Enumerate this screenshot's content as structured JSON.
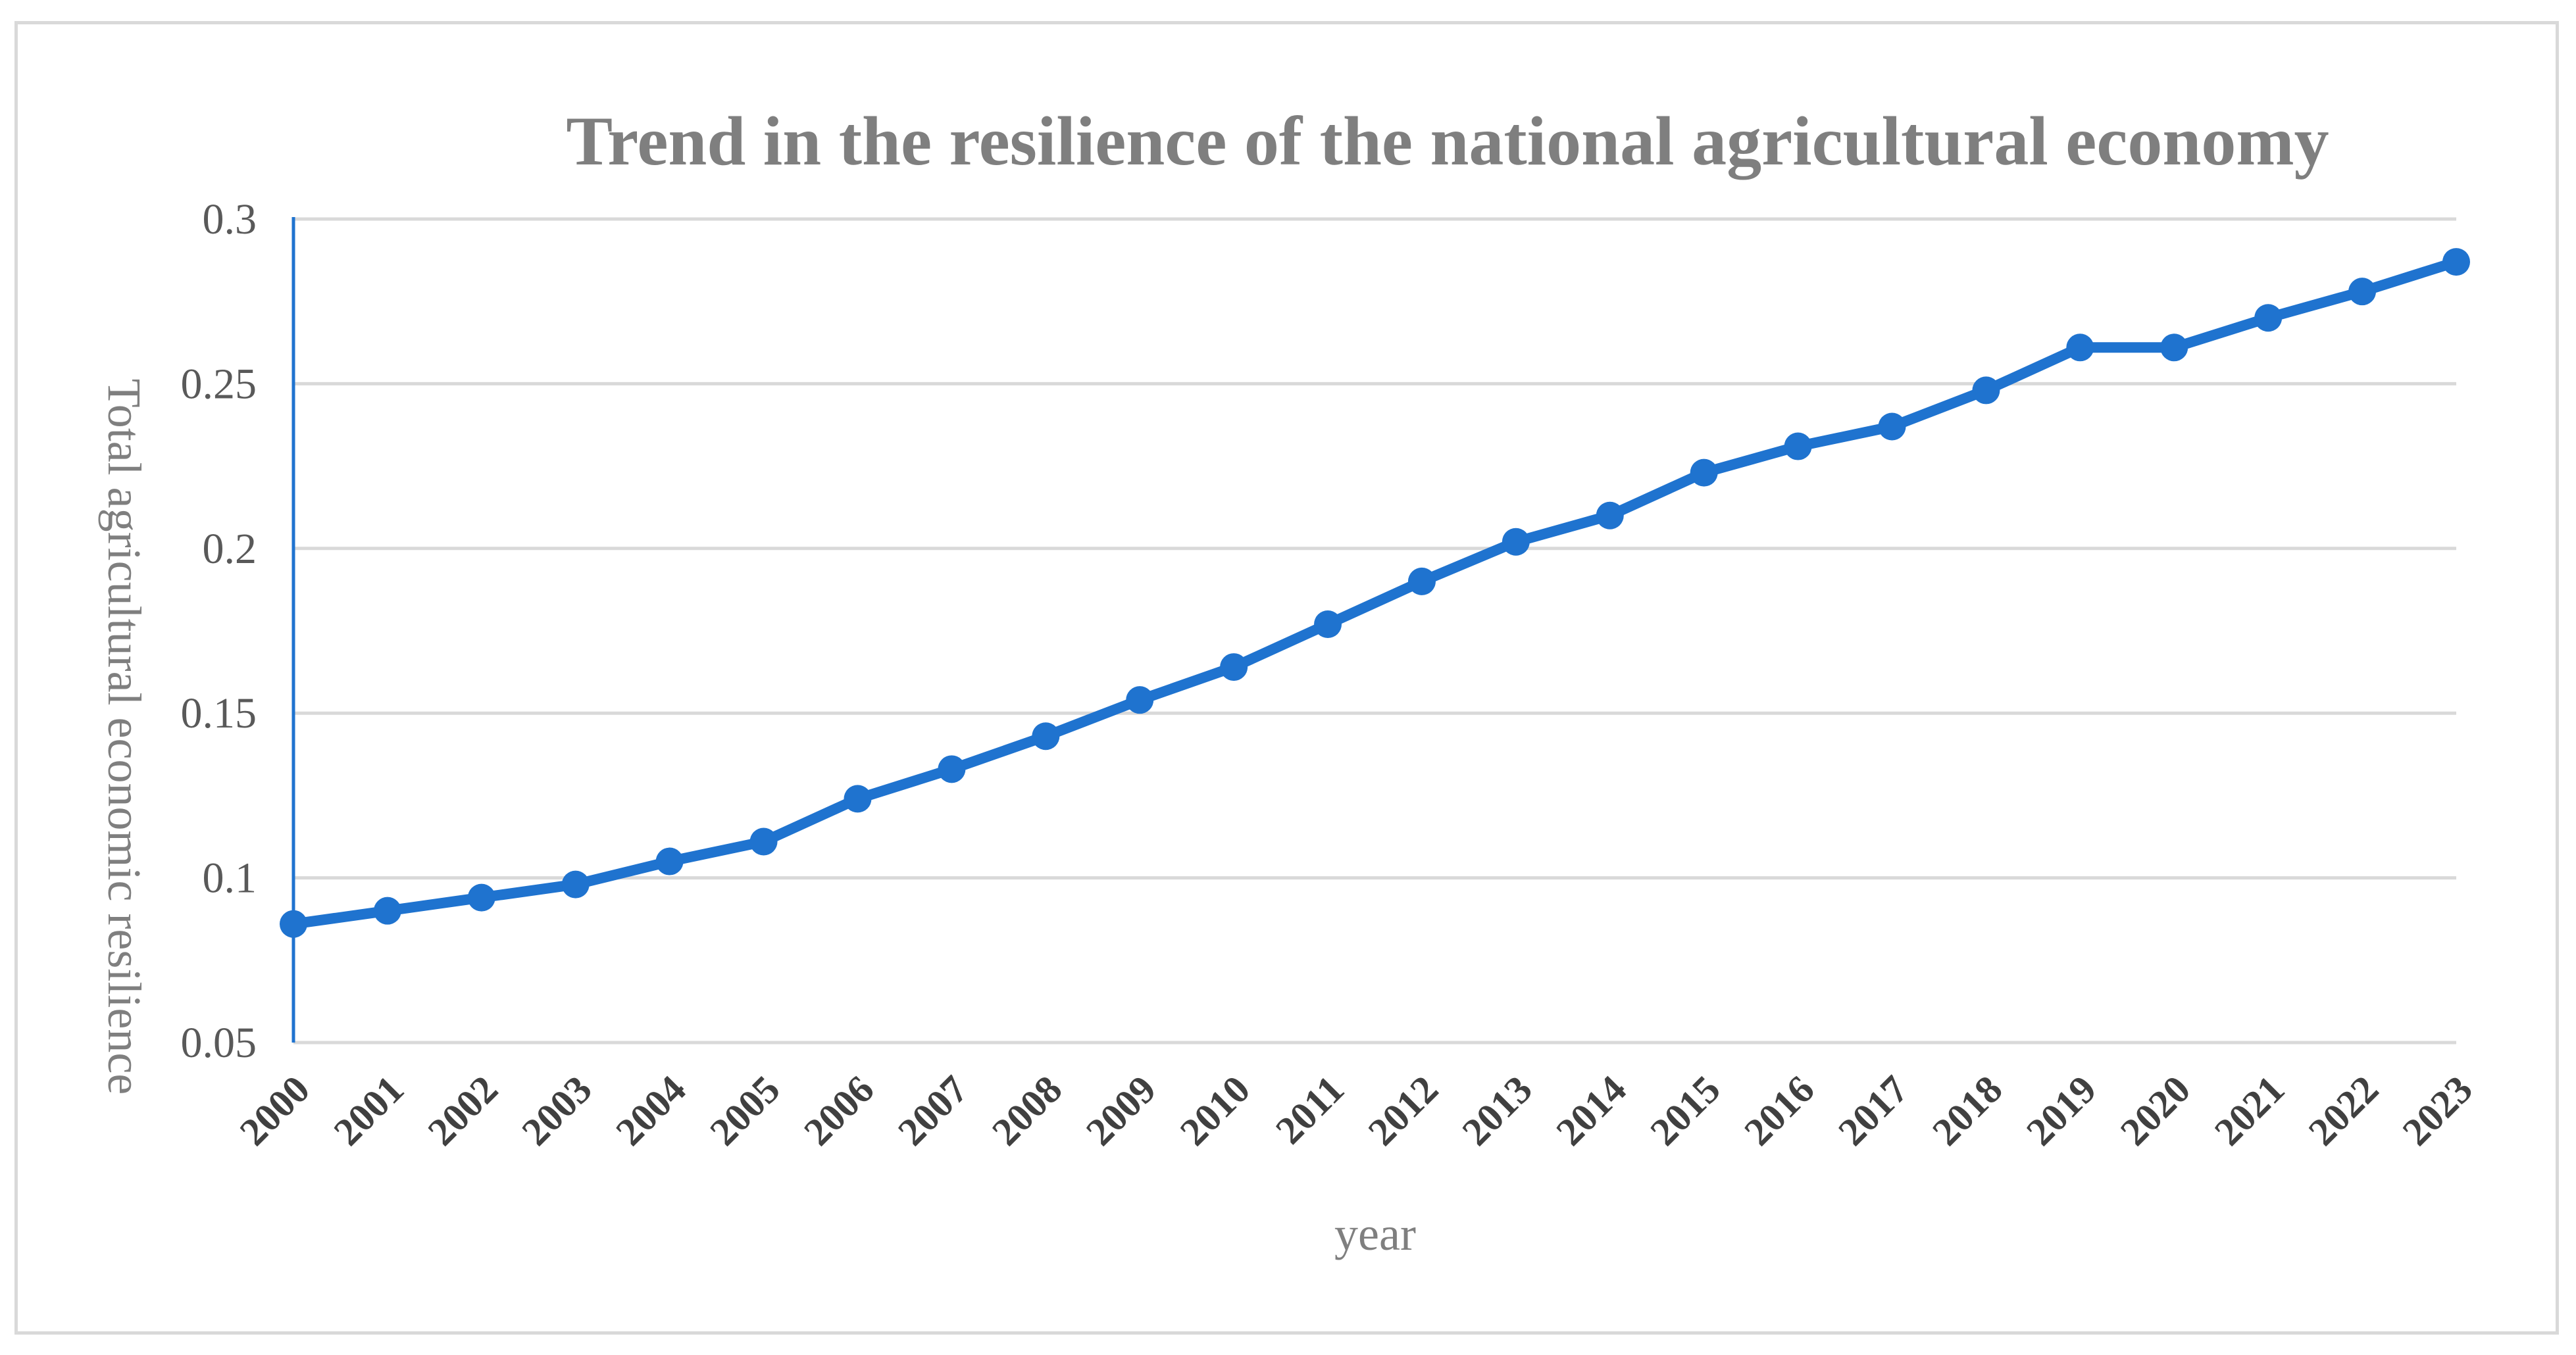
{
  "chart_data": {
    "type": "line",
    "title": "Trend in the resilience of the national agricultural economy",
    "xlabel": "year",
    "ylabel": "Total agricultural economic resilience",
    "categories": [
      "2000",
      "2001",
      "2002",
      "2003",
      "2004",
      "2005",
      "2006",
      "2007",
      "2008",
      "2009",
      "2010",
      "2011",
      "2012",
      "2013",
      "2014",
      "2015",
      "2016",
      "2017",
      "2018",
      "2019",
      "2020",
      "2021",
      "2022",
      "2023"
    ],
    "series": [
      {
        "name": "Total agricultural economic resilience",
        "color": "#1f73cf",
        "values": [
          0.086,
          0.09,
          0.094,
          0.098,
          0.105,
          0.111,
          0.124,
          0.133,
          0.143,
          0.154,
          0.164,
          0.177,
          0.19,
          0.202,
          0.21,
          0.223,
          0.231,
          0.237,
          0.248,
          0.261,
          0.261,
          0.27,
          0.278,
          0.287
        ]
      }
    ],
    "ylim": [
      0.05,
      0.3
    ],
    "yticks": [
      0.05,
      0.1,
      0.15,
      0.2,
      0.25,
      0.3
    ],
    "ytick_labels": [
      "0.05",
      "0.1",
      "0.15",
      "0.2",
      "0.25",
      "0.3"
    ],
    "grid": true,
    "legend": "none"
  }
}
